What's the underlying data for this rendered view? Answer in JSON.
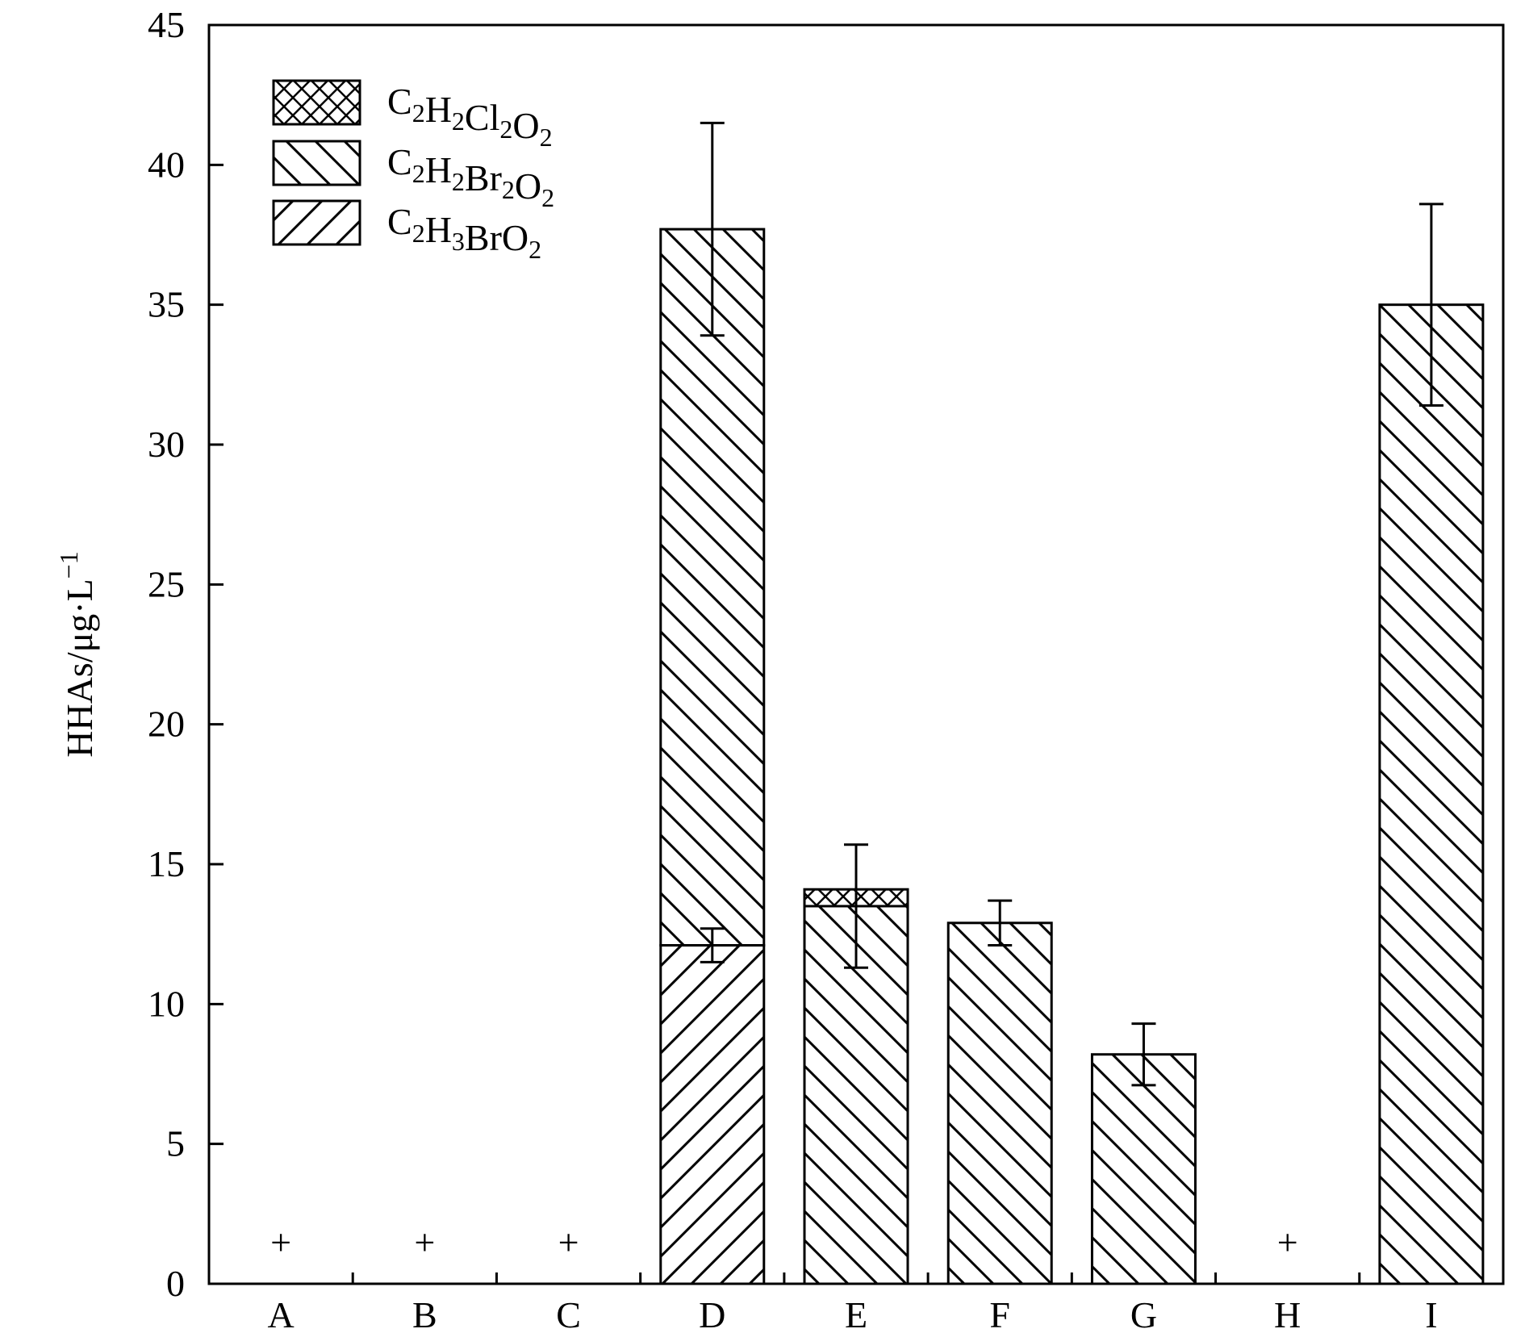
{
  "chart_data": {
    "type": "bar",
    "stacked": true,
    "categories": [
      "A",
      "B",
      "C",
      "D",
      "E",
      "F",
      "G",
      "H",
      "I"
    ],
    "ylabel": "HHAs/μg·L",
    "ylabel_sup": "−1",
    "ylim": [
      0,
      45
    ],
    "yticks": [
      0,
      5,
      10,
      15,
      20,
      25,
      30,
      35,
      40,
      45
    ],
    "grid": false,
    "legend_position": "top-left",
    "not_detected_marker": "+",
    "not_detected": [
      "A",
      "B",
      "C",
      "H"
    ],
    "series": [
      {
        "id": "bro",
        "name_parts": [
          [
            "C",
            false
          ],
          [
            "2",
            true
          ],
          [
            "H",
            false
          ],
          [
            "3",
            true
          ],
          [
            "BrO",
            false
          ],
          [
            "2",
            true
          ]
        ],
        "pattern": "forward-diagonal",
        "values": [
          0,
          0,
          0,
          12.1,
          0,
          0,
          0,
          0,
          0
        ],
        "errors": [
          0,
          0,
          0,
          0.6,
          0,
          0,
          0,
          0,
          0
        ]
      },
      {
        "id": "dbr",
        "name_parts": [
          [
            "C",
            false
          ],
          [
            "2",
            true
          ],
          [
            "H",
            false
          ],
          [
            "2",
            true
          ],
          [
            "Br",
            false
          ],
          [
            "2",
            true
          ],
          [
            "O",
            false
          ],
          [
            "2",
            true
          ]
        ],
        "pattern": "back-diagonal",
        "values": [
          0,
          0,
          0,
          25.6,
          13.5,
          12.9,
          8.2,
          0,
          35.0
        ],
        "errors": [
          0,
          0,
          0,
          3.8,
          2.2,
          0.8,
          1.1,
          0,
          3.6
        ]
      },
      {
        "id": "dcl",
        "name_parts": [
          [
            "C",
            false
          ],
          [
            "2",
            true
          ],
          [
            "H",
            false
          ],
          [
            "2",
            true
          ],
          [
            "Cl",
            false
          ],
          [
            "2",
            true
          ],
          [
            "O",
            false
          ],
          [
            "2",
            true
          ]
        ],
        "pattern": "cross-hatch",
        "values": [
          0,
          0,
          0,
          0,
          0.6,
          0,
          0,
          0,
          0
        ],
        "errors": [
          0,
          0,
          0,
          0,
          0,
          0,
          0,
          0,
          0
        ]
      }
    ],
    "legend_order": [
      "dcl",
      "dbr",
      "bro"
    ]
  }
}
